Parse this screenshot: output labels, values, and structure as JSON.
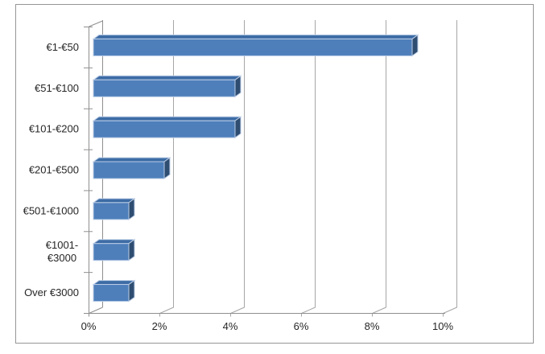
{
  "chart_data": {
    "type": "bar",
    "orientation": "horizontal",
    "style": "3d-excel",
    "title": "",
    "xlabel": "",
    "ylabel": "",
    "legend": false,
    "grid": true,
    "categories": [
      "€1-€50",
      "€51-€100",
      "€101-€200",
      "€201-€500",
      "€501-€1000",
      "€1001-€3000",
      "Over €3000"
    ],
    "category_display_lines": [
      [
        "€1-€50"
      ],
      [
        "€51-€100"
      ],
      [
        "€101-€200"
      ],
      [
        "€201-€500"
      ],
      [
        "€501-€1000"
      ],
      [
        "€1001-",
        "€3000"
      ],
      [
        "Over €3000"
      ]
    ],
    "values": [
      9,
      4,
      4,
      2,
      1,
      1,
      1
    ],
    "unit": "%",
    "xlim": [
      0,
      10
    ],
    "x_tick_values": [
      0,
      2,
      4,
      6,
      8,
      10
    ],
    "x_tick_labels": [
      "0%",
      "2%",
      "4%",
      "6%",
      "8%",
      "10%"
    ],
    "colors": {
      "bar_front": "#4E7FBB",
      "bar_top": "#3D6CA5",
      "bar_side": "#2E4D71",
      "bar_outline": "#BCCDE6",
      "gridline": "#A6A6A6",
      "axis_line": "#8F8F8F",
      "tick_label": "#262626",
      "chart_border": "#969696",
      "background": "#FFFFFF"
    }
  }
}
